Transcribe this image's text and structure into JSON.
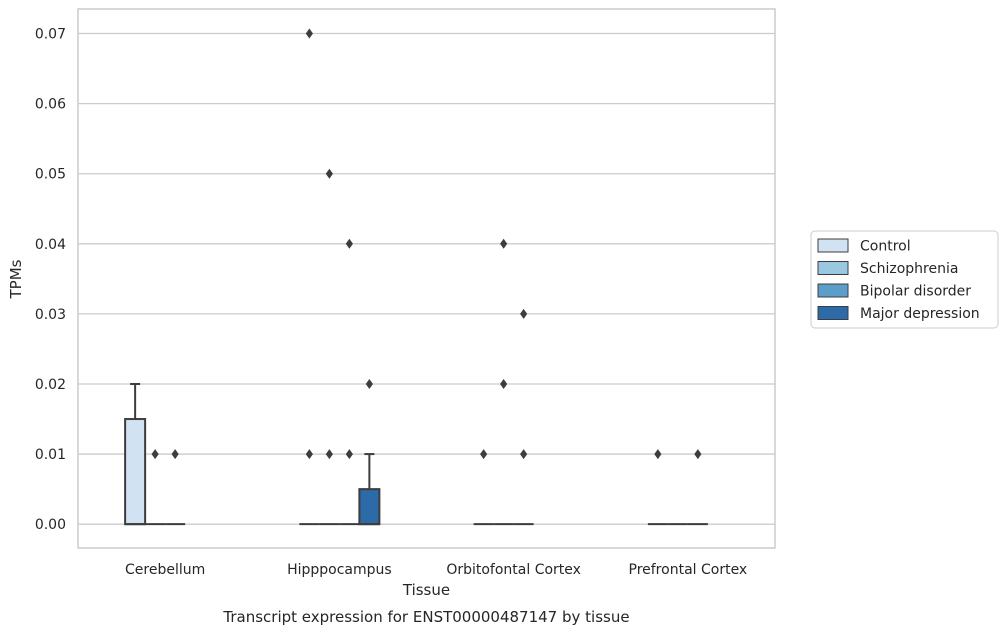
{
  "caption": "Transcript expression for ENST00000487147 by tissue",
  "chart_data": {
    "type": "box",
    "title": "",
    "xlabel": "Tissue",
    "ylabel": "TPMs",
    "ylim": [
      -0.0034,
      0.0735
    ],
    "yticks": [
      0.0,
      0.01,
      0.02,
      0.03,
      0.04,
      0.05,
      0.06,
      0.07
    ],
    "ytick_labels": [
      "0.00",
      "0.01",
      "0.02",
      "0.03",
      "0.04",
      "0.05",
      "0.06",
      "0.07"
    ],
    "grid": "horizontal",
    "legend_position": "right",
    "categories": [
      "Cerebellum",
      "Hipppocampus",
      "Orbitofontal Cortex",
      "Prefrontal Cortex"
    ],
    "series": [
      {
        "name": "Control",
        "color": "#d1e2f2",
        "boxes": [
          {
            "q1": 0.0,
            "median": 0.0,
            "q3": 0.015,
            "whisker_low": 0.0,
            "whisker_high": 0.02,
            "outliers": []
          },
          {
            "q1": 0.0,
            "median": 0.0,
            "q3": 0.0,
            "whisker_low": 0.0,
            "whisker_high": 0.0,
            "outliers": [
              0.01,
              0.07
            ]
          },
          {
            "q1": 0.0,
            "median": 0.0,
            "q3": 0.0,
            "whisker_low": 0.0,
            "whisker_high": 0.0,
            "outliers": [
              0.01
            ]
          },
          {
            "q1": 0.0,
            "median": 0.0,
            "q3": 0.0,
            "whisker_low": 0.0,
            "whisker_high": 0.0,
            "outliers": [
              0.01
            ]
          }
        ]
      },
      {
        "name": "Schizophrenia",
        "color": "#9ac8e0",
        "boxes": [
          {
            "q1": 0.0,
            "median": 0.0,
            "q3": 0.0,
            "whisker_low": 0.0,
            "whisker_high": 0.0,
            "outliers": [
              0.01
            ]
          },
          {
            "q1": 0.0,
            "median": 0.0,
            "q3": 0.0,
            "whisker_low": 0.0,
            "whisker_high": 0.0,
            "outliers": [
              0.01,
              0.05
            ]
          },
          {
            "q1": 0.0,
            "median": 0.0,
            "q3": 0.0,
            "whisker_low": 0.0,
            "whisker_high": 0.0,
            "outliers": [
              0.02,
              0.04
            ]
          },
          {
            "q1": 0.0,
            "median": 0.0,
            "q3": 0.0,
            "whisker_low": 0.0,
            "whisker_high": 0.0,
            "outliers": []
          }
        ]
      },
      {
        "name": "Bipolar disorder",
        "color": "#5a9ec9",
        "boxes": [
          {
            "q1": 0.0,
            "median": 0.0,
            "q3": 0.0,
            "whisker_low": 0.0,
            "whisker_high": 0.0,
            "outliers": [
              0.01
            ]
          },
          {
            "q1": 0.0,
            "median": 0.0,
            "q3": 0.0,
            "whisker_low": 0.0,
            "whisker_high": 0.0,
            "outliers": [
              0.01,
              0.04
            ]
          },
          {
            "q1": 0.0,
            "median": 0.0,
            "q3": 0.0,
            "whisker_low": 0.0,
            "whisker_high": 0.0,
            "outliers": [
              0.01,
              0.03
            ]
          },
          {
            "q1": 0.0,
            "median": 0.0,
            "q3": 0.0,
            "whisker_low": 0.0,
            "whisker_high": 0.0,
            "outliers": [
              0.01
            ]
          }
        ]
      },
      {
        "name": "Major depression",
        "color": "#2c6aa8",
        "boxes": [
          {
            "q1": null,
            "median": null,
            "q3": null,
            "whisker_low": null,
            "whisker_high": null,
            "outliers": []
          },
          {
            "q1": 0.0,
            "median": 0.0,
            "q3": 0.005,
            "whisker_low": 0.0,
            "whisker_high": 0.01,
            "outliers": [
              0.02
            ]
          },
          {
            "q1": null,
            "median": null,
            "q3": null,
            "whisker_low": null,
            "whisker_high": null,
            "outliers": []
          },
          {
            "q1": null,
            "median": null,
            "q3": null,
            "whisker_low": null,
            "whisker_high": null,
            "outliers": []
          }
        ]
      }
    ]
  },
  "colors": {
    "frame": "#cccccc",
    "grid": "#cccccc",
    "box_edge": "#3d3d3d",
    "text": "#262626"
  }
}
